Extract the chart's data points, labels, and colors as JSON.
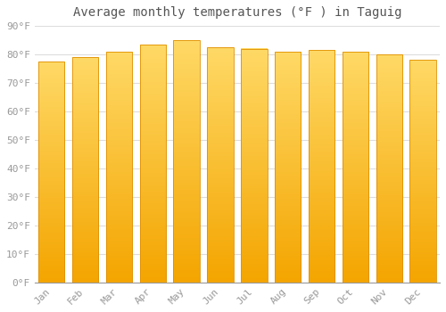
{
  "title": "Average monthly temperatures (°F ) in Taguig",
  "months": [
    "Jan",
    "Feb",
    "Mar",
    "Apr",
    "May",
    "Jun",
    "Jul",
    "Aug",
    "Sep",
    "Oct",
    "Nov",
    "Dec"
  ],
  "values": [
    77.5,
    79.0,
    81.0,
    83.5,
    85.0,
    82.5,
    82.0,
    81.0,
    81.5,
    81.0,
    80.0,
    78.0
  ],
  "bar_color_top": "#FFD966",
  "bar_color_bottom": "#F4A500",
  "bar_edge_color": "#E09000",
  "background_color": "#FFFFFF",
  "plot_bg_color": "#FFFFFF",
  "grid_color": "#DDDDDD",
  "ylim": [
    0,
    90
  ],
  "yticks": [
    0,
    10,
    20,
    30,
    40,
    50,
    60,
    70,
    80,
    90
  ],
  "title_fontsize": 10,
  "tick_fontsize": 8,
  "tick_color": "#999999"
}
